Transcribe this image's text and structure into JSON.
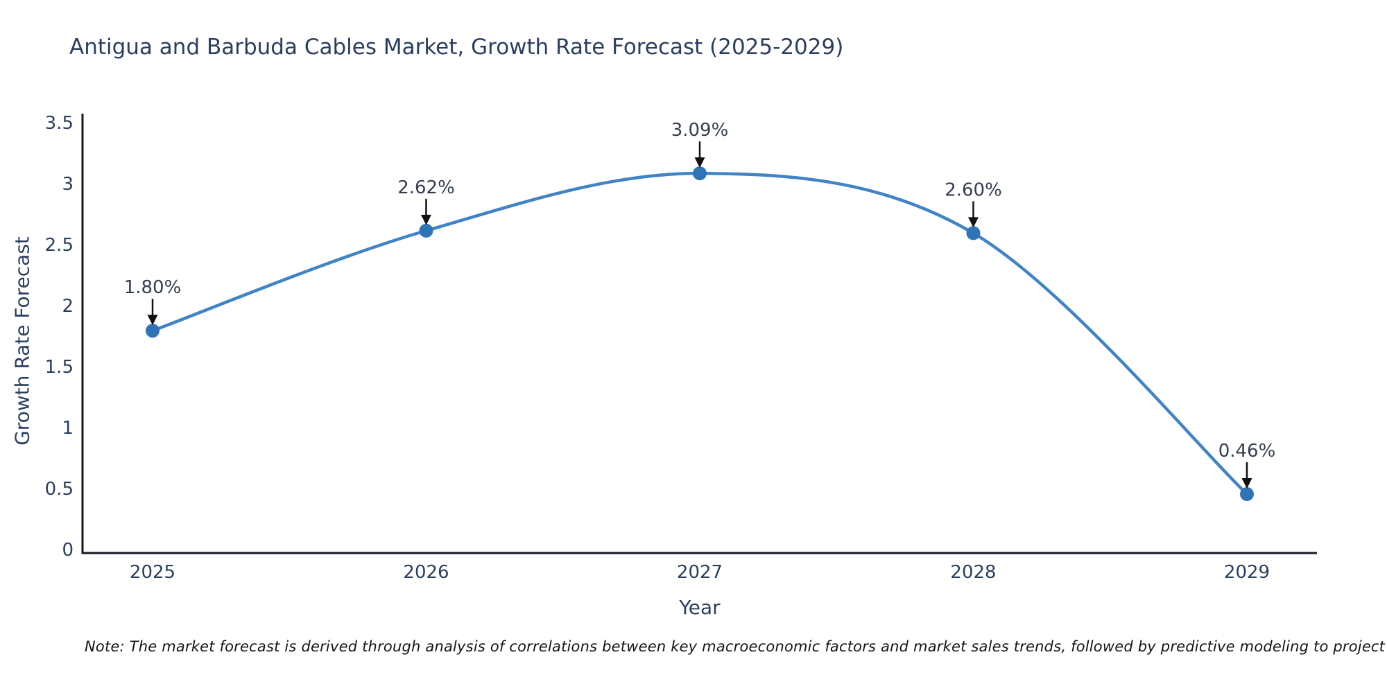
{
  "title": "Antigua and Barbuda Cables Market, Growth Rate Forecast (2025-2029)",
  "note": "Note: The market forecast is derived through analysis of correlations between key macroeconomic factors and market sales trends, followed by predictive modeling to project future sales",
  "chart_data": {
    "type": "line",
    "title": "Antigua and Barbuda Cables Market, Growth Rate Forecast (2025-2029)",
    "categories": [
      "2025",
      "2026",
      "2027",
      "2028",
      "2029"
    ],
    "values": [
      1.8,
      2.62,
      3.09,
      2.6,
      0.46
    ],
    "point_labels": [
      "1.80%",
      "2.62%",
      "3.09%",
      "2.60%",
      "0.46%"
    ],
    "xlabel": "Year",
    "ylabel": "Growth Rate Forecast",
    "ylim": [
      0,
      3.5
    ],
    "yticks": [
      0,
      0.5,
      1,
      1.5,
      2,
      2.5,
      3,
      3.5
    ],
    "ytick_labels": [
      "0",
      "0.5",
      "1",
      "1.5",
      "2",
      "2.5",
      "3",
      "3.5"
    ],
    "grid": false,
    "legend": "none",
    "line_shape": "spline",
    "annotation_style": "value label with down arrow to each point"
  },
  "colors": {
    "background": "#ffffff",
    "title_text": "#2a3f5f",
    "tick_text": "#2a3f5f",
    "axis_line": "#16161e",
    "series_line": "#4183c4",
    "marker_fill": "#2f74b6",
    "annotation_text": "#333d4d",
    "annotation_arrow": "#111111",
    "note_text": "#141414"
  }
}
